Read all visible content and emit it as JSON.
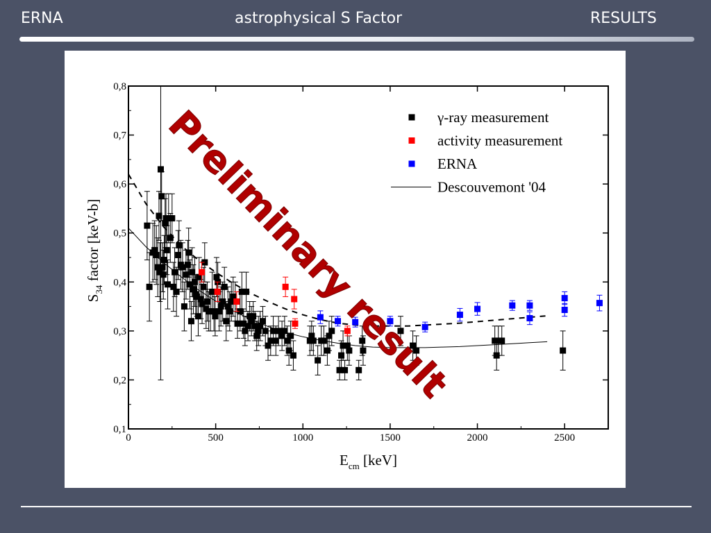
{
  "header": {
    "left": "ERNA",
    "center": "astrophysical S Factor",
    "right": "RESULTS"
  },
  "colors": {
    "background": "#4b5266",
    "gamma": "#000000",
    "activity": "#ff0000",
    "erna": "#0000ff",
    "watermark": "#b00000"
  },
  "chart_data": {
    "type": "scatter",
    "title": "",
    "xlabel": "E",
    "xlabel_sub": "cm",
    "xlabel_unit": " [keV]",
    "ylabel": "S",
    "ylabel_sub": "34",
    "ylabel_unit": " factor [keV-b]",
    "xlim": [
      0,
      2750
    ],
    "ylim": [
      0.1,
      0.8
    ],
    "xticks": [
      0,
      500,
      1000,
      1500,
      2000,
      2500
    ],
    "xtick_labels": [
      "0",
      "500",
      "1000",
      "1500",
      "2000",
      "2500"
    ],
    "yticks": [
      0.1,
      0.2,
      0.3,
      0.4,
      0.5,
      0.6,
      0.7,
      0.8
    ],
    "ytick_labels": [
      "0,1",
      "0,2",
      "0,3",
      "0,4",
      "0,5",
      "0,6",
      "0,7",
      "0,8"
    ],
    "grid": false,
    "legend_position": "top-right",
    "legend": [
      {
        "label": "γ-ray measurement",
        "marker": "square",
        "color": "#000000"
      },
      {
        "label": "activity measurement",
        "marker": "square",
        "color": "#ff0000"
      },
      {
        "label": "ERNA",
        "marker": "square",
        "color": "#0000ff"
      },
      {
        "label": "Descouvemont '04",
        "marker": "line",
        "color": "#000000"
      }
    ],
    "annotation": "Preliminary result",
    "series": [
      {
        "name": "γ-ray measurement",
        "type": "scatter",
        "color": "#000000",
        "points": [
          {
            "x": 107,
            "y": 0.515,
            "err": 0.07
          },
          {
            "x": 120,
            "y": 0.39,
            "err": 0.07
          },
          {
            "x": 140,
            "y": 0.46,
            "err": 0.06
          },
          {
            "x": 150,
            "y": 0.465,
            "err": 0.06
          },
          {
            "x": 160,
            "y": 0.455,
            "err": 0.06
          },
          {
            "x": 168,
            "y": 0.43,
            "err": 0.06
          },
          {
            "x": 175,
            "y": 0.535,
            "err": 0.05
          },
          {
            "x": 180,
            "y": 0.42,
            "err": 0.06
          },
          {
            "x": 185,
            "y": 0.63,
            "err": 0.43
          },
          {
            "x": 190,
            "y": 0.575,
            "err": 0.05
          },
          {
            "x": 195,
            "y": 0.43,
            "err": 0.05
          },
          {
            "x": 200,
            "y": 0.415,
            "err": 0.05
          },
          {
            "x": 205,
            "y": 0.445,
            "err": 0.05
          },
          {
            "x": 210,
            "y": 0.52,
            "err": 0.05
          },
          {
            "x": 215,
            "y": 0.53,
            "err": 0.05
          },
          {
            "x": 220,
            "y": 0.465,
            "err": 0.05
          },
          {
            "x": 225,
            "y": 0.395,
            "err": 0.05
          },
          {
            "x": 230,
            "y": 0.53,
            "err": 0.05
          },
          {
            "x": 240,
            "y": 0.49,
            "err": 0.05
          },
          {
            "x": 250,
            "y": 0.53,
            "err": 0.05
          },
          {
            "x": 258,
            "y": 0.39,
            "err": 0.05
          },
          {
            "x": 265,
            "y": 0.42,
            "err": 0.05
          },
          {
            "x": 275,
            "y": 0.38,
            "err": 0.05
          },
          {
            "x": 285,
            "y": 0.455,
            "err": 0.05
          },
          {
            "x": 290,
            "y": 0.475,
            "err": 0.05
          },
          {
            "x": 300,
            "y": 0.435,
            "err": 0.05
          },
          {
            "x": 310,
            "y": 0.43,
            "err": 0.05
          },
          {
            "x": 320,
            "y": 0.35,
            "err": 0.05
          },
          {
            "x": 330,
            "y": 0.415,
            "err": 0.05
          },
          {
            "x": 340,
            "y": 0.435,
            "err": 0.05
          },
          {
            "x": 345,
            "y": 0.46,
            "err": 0.05
          },
          {
            "x": 352,
            "y": 0.395,
            "err": 0.05
          },
          {
            "x": 360,
            "y": 0.32,
            "err": 0.04
          },
          {
            "x": 365,
            "y": 0.42,
            "err": 0.05
          },
          {
            "x": 372,
            "y": 0.385,
            "err": 0.05
          },
          {
            "x": 380,
            "y": 0.4,
            "err": 0.05
          },
          {
            "x": 385,
            "y": 0.375,
            "err": 0.04
          },
          {
            "x": 392,
            "y": 0.37,
            "err": 0.04
          },
          {
            "x": 400,
            "y": 0.33,
            "err": 0.04
          },
          {
            "x": 405,
            "y": 0.41,
            "err": 0.04
          },
          {
            "x": 415,
            "y": 0.365,
            "err": 0.04
          },
          {
            "x": 422,
            "y": 0.355,
            "err": 0.04
          },
          {
            "x": 430,
            "y": 0.39,
            "err": 0.04
          },
          {
            "x": 437,
            "y": 0.44,
            "err": 0.04
          },
          {
            "x": 445,
            "y": 0.345,
            "err": 0.04
          },
          {
            "x": 452,
            "y": 0.36,
            "err": 0.04
          },
          {
            "x": 460,
            "y": 0.34,
            "err": 0.04
          },
          {
            "x": 470,
            "y": 0.34,
            "err": 0.04
          },
          {
            "x": 480,
            "y": 0.38,
            "err": 0.04
          },
          {
            "x": 490,
            "y": 0.34,
            "err": 0.04
          },
          {
            "x": 497,
            "y": 0.33,
            "err": 0.04
          },
          {
            "x": 505,
            "y": 0.41,
            "err": 0.04
          },
          {
            "x": 512,
            "y": 0.4,
            "err": 0.04
          },
          {
            "x": 520,
            "y": 0.34,
            "err": 0.04
          },
          {
            "x": 530,
            "y": 0.35,
            "err": 0.04
          },
          {
            "x": 540,
            "y": 0.36,
            "err": 0.04
          },
          {
            "x": 550,
            "y": 0.39,
            "err": 0.04
          },
          {
            "x": 560,
            "y": 0.32,
            "err": 0.04
          },
          {
            "x": 570,
            "y": 0.35,
            "err": 0.04
          },
          {
            "x": 580,
            "y": 0.34,
            "err": 0.04
          },
          {
            "x": 590,
            "y": 0.36,
            "err": 0.04
          },
          {
            "x": 600,
            "y": 0.37,
            "err": 0.04
          },
          {
            "x": 612,
            "y": 0.36,
            "err": 0.04
          },
          {
            "x": 625,
            "y": 0.315,
            "err": 0.03
          },
          {
            "x": 640,
            "y": 0.34,
            "err": 0.04
          },
          {
            "x": 650,
            "y": 0.38,
            "err": 0.04
          },
          {
            "x": 660,
            "y": 0.315,
            "err": 0.03
          },
          {
            "x": 668,
            "y": 0.3,
            "err": 0.03
          },
          {
            "x": 675,
            "y": 0.38,
            "err": 0.04
          },
          {
            "x": 685,
            "y": 0.31,
            "err": 0.03
          },
          {
            "x": 695,
            "y": 0.33,
            "err": 0.03
          },
          {
            "x": 705,
            "y": 0.32,
            "err": 0.03
          },
          {
            "x": 715,
            "y": 0.33,
            "err": 0.03
          },
          {
            "x": 725,
            "y": 0.31,
            "err": 0.03
          },
          {
            "x": 735,
            "y": 0.29,
            "err": 0.03
          },
          {
            "x": 745,
            "y": 0.3,
            "err": 0.03
          },
          {
            "x": 755,
            "y": 0.31,
            "err": 0.03
          },
          {
            "x": 770,
            "y": 0.32,
            "err": 0.03
          },
          {
            "x": 785,
            "y": 0.3,
            "err": 0.03
          },
          {
            "x": 800,
            "y": 0.27,
            "err": 0.03
          },
          {
            "x": 815,
            "y": 0.28,
            "err": 0.03
          },
          {
            "x": 830,
            "y": 0.3,
            "err": 0.03
          },
          {
            "x": 845,
            "y": 0.28,
            "err": 0.03
          },
          {
            "x": 860,
            "y": 0.3,
            "err": 0.03
          },
          {
            "x": 880,
            "y": 0.29,
            "err": 0.03
          },
          {
            "x": 895,
            "y": 0.3,
            "err": 0.03
          },
          {
            "x": 910,
            "y": 0.28,
            "err": 0.03
          },
          {
            "x": 920,
            "y": 0.26,
            "err": 0.03
          },
          {
            "x": 930,
            "y": 0.29,
            "err": 0.03
          },
          {
            "x": 945,
            "y": 0.25,
            "err": 0.03
          },
          {
            "x": 1040,
            "y": 0.28,
            "err": 0.03
          },
          {
            "x": 1050,
            "y": 0.29,
            "err": 0.03
          },
          {
            "x": 1060,
            "y": 0.28,
            "err": 0.03
          },
          {
            "x": 1085,
            "y": 0.24,
            "err": 0.03
          },
          {
            "x": 1105,
            "y": 0.28,
            "err": 0.03
          },
          {
            "x": 1120,
            "y": 0.28,
            "err": 0.03
          },
          {
            "x": 1140,
            "y": 0.26,
            "err": 0.03
          },
          {
            "x": 1150,
            "y": 0.29,
            "err": 0.03
          },
          {
            "x": 1165,
            "y": 0.3,
            "err": 0.03
          },
          {
            "x": 1210,
            "y": 0.22,
            "err": 0.02
          },
          {
            "x": 1220,
            "y": 0.25,
            "err": 0.03
          },
          {
            "x": 1230,
            "y": 0.27,
            "err": 0.03
          },
          {
            "x": 1240,
            "y": 0.22,
            "err": 0.02
          },
          {
            "x": 1255,
            "y": 0.27,
            "err": 0.03
          },
          {
            "x": 1265,
            "y": 0.26,
            "err": 0.03
          },
          {
            "x": 1320,
            "y": 0.22,
            "err": 0.02
          },
          {
            "x": 1340,
            "y": 0.28,
            "err": 0.03
          },
          {
            "x": 1345,
            "y": 0.26,
            "err": 0.03
          },
          {
            "x": 1560,
            "y": 0.3,
            "err": 0.03
          },
          {
            "x": 1630,
            "y": 0.27,
            "err": 0.03
          },
          {
            "x": 1650,
            "y": 0.26,
            "err": 0.03
          },
          {
            "x": 2100,
            "y": 0.28,
            "err": 0.03
          },
          {
            "x": 2110,
            "y": 0.25,
            "err": 0.03
          },
          {
            "x": 2120,
            "y": 0.28,
            "err": 0.03
          },
          {
            "x": 2140,
            "y": 0.28,
            "err": 0.03
          },
          {
            "x": 2490,
            "y": 0.26,
            "err": 0.04
          }
        ]
      },
      {
        "name": "activity measurement",
        "type": "scatter",
        "color": "#ff0000",
        "points": [
          {
            "x": 420,
            "y": 0.42,
            "err": 0.02
          },
          {
            "x": 510,
            "y": 0.38,
            "err": 0.02
          },
          {
            "x": 620,
            "y": 0.36,
            "err": 0.02
          },
          {
            "x": 900,
            "y": 0.39,
            "err": 0.02
          },
          {
            "x": 950,
            "y": 0.365,
            "err": 0.02
          },
          {
            "x": 955,
            "y": 0.315,
            "err": 0.01
          },
          {
            "x": 1255,
            "y": 0.3,
            "err": 0.01
          }
        ]
      },
      {
        "name": "ERNA",
        "type": "scatter",
        "color": "#0000ff",
        "points": [
          {
            "x": 1100,
            "y": 0.328,
            "err": 0.013
          },
          {
            "x": 1200,
            "y": 0.32,
            "err": 0.01
          },
          {
            "x": 1300,
            "y": 0.318,
            "err": 0.01
          },
          {
            "x": 1500,
            "y": 0.32,
            "err": 0.01
          },
          {
            "x": 1700,
            "y": 0.308,
            "err": 0.01
          },
          {
            "x": 1900,
            "y": 0.333,
            "err": 0.013
          },
          {
            "x": 2000,
            "y": 0.345,
            "err": 0.013
          },
          {
            "x": 2200,
            "y": 0.352,
            "err": 0.01
          },
          {
            "x": 2300,
            "y": 0.352,
            "err": 0.01
          },
          {
            "x": 2300,
            "y": 0.326,
            "err": 0.013
          },
          {
            "x": 2500,
            "y": 0.367,
            "err": 0.013
          },
          {
            "x": 2500,
            "y": 0.343,
            "err": 0.013
          },
          {
            "x": 2700,
            "y": 0.357,
            "err": 0.016
          }
        ]
      },
      {
        "name": "Descouvemont '04",
        "type": "line",
        "style": "solid",
        "color": "#000000",
        "x": [
          0,
          100,
          200,
          300,
          400,
          500,
          600,
          700,
          800,
          900,
          1000,
          1100,
          1200,
          1300,
          1400,
          1500,
          1600,
          1700,
          1800,
          1900,
          2000,
          2100,
          2200,
          2300,
          2400
        ],
        "y": [
          0.51,
          0.472,
          0.44,
          0.411,
          0.384,
          0.361,
          0.341,
          0.324,
          0.309,
          0.297,
          0.288,
          0.281,
          0.275,
          0.27,
          0.267,
          0.266,
          0.266,
          0.266,
          0.267,
          0.268,
          0.27,
          0.272,
          0.274,
          0.276,
          0.278
        ]
      },
      {
        "type": "line",
        "style": "dashed",
        "color": "#000000",
        "x": [
          0,
          100,
          200,
          300,
          400,
          500,
          600,
          700,
          800,
          900,
          1000,
          1100,
          1200,
          1300,
          1400,
          1500,
          1600,
          1700,
          1800,
          1900,
          2000,
          2100,
          2200,
          2300,
          2400
        ],
        "y": [
          0.62,
          0.56,
          0.513,
          0.475,
          0.445,
          0.42,
          0.397,
          0.377,
          0.36,
          0.345,
          0.333,
          0.323,
          0.316,
          0.312,
          0.31,
          0.31,
          0.31,
          0.312,
          0.314,
          0.316,
          0.319,
          0.322,
          0.325,
          0.328,
          0.331
        ]
      }
    ]
  }
}
